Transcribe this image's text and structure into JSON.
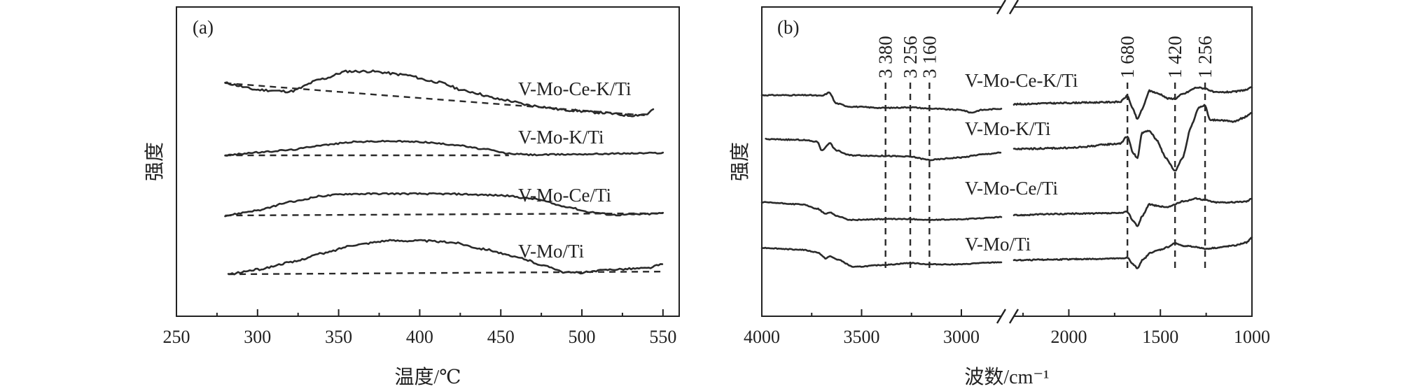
{
  "chart_data": [
    {
      "panel_tag": "(a)",
      "type": "line",
      "xlabel": "温度/℃",
      "ylabel": "强度",
      "xlim": [
        250,
        560
      ],
      "xticks": [
        250,
        300,
        350,
        400,
        450,
        500,
        550
      ],
      "x_range_of_curves": [
        280,
        550
      ],
      "series": [
        {
          "name": "V-Mo-Ce-K/Ti",
          "x_end": 545,
          "curve": [
            [
              280,
              0.72
            ],
            [
              300,
              0.56
            ],
            [
              320,
              0.52
            ],
            [
              340,
              0.82
            ],
            [
              355,
              1.0
            ],
            [
              370,
              1.0
            ],
            [
              390,
              0.92
            ],
            [
              410,
              0.75
            ],
            [
              430,
              0.52
            ],
            [
              450,
              0.33
            ],
            [
              470,
              0.18
            ],
            [
              490,
              0.08
            ],
            [
              510,
              0.02
            ],
            [
              530,
              -0.05
            ],
            [
              540,
              -0.02
            ],
            [
              545,
              0.12
            ]
          ],
          "baseline": [
            [
              280,
              0.72
            ],
            [
              540,
              -0.05
            ]
          ]
        },
        {
          "name": "V-Mo-K/Ti",
          "x_end": 550,
          "curve": [
            [
              280,
              0.0
            ],
            [
              300,
              0.12
            ],
            [
              320,
              0.22
            ],
            [
              340,
              0.42
            ],
            [
              360,
              0.55
            ],
            [
              380,
              0.58
            ],
            [
              400,
              0.55
            ],
            [
              420,
              0.44
            ],
            [
              440,
              0.25
            ],
            [
              455,
              0.07
            ],
            [
              470,
              0.02
            ],
            [
              500,
              0.05
            ],
            [
              530,
              0.08
            ],
            [
              550,
              0.1
            ]
          ],
          "baseline": [
            [
              280,
              0.0
            ],
            [
              455,
              0.0
            ]
          ]
        },
        {
          "name": "V-Mo-Ce/Ti",
          "x_end": 550,
          "curve": [
            [
              280,
              0.0
            ],
            [
              300,
              0.18
            ],
            [
              320,
              0.48
            ],
            [
              340,
              0.7
            ],
            [
              355,
              0.77
            ],
            [
              380,
              0.78
            ],
            [
              420,
              0.77
            ],
            [
              450,
              0.72
            ],
            [
              470,
              0.6
            ],
            [
              490,
              0.32
            ],
            [
              505,
              0.12
            ],
            [
              520,
              0.02
            ],
            [
              540,
              0.05
            ],
            [
              550,
              0.08
            ]
          ],
          "baseline": [
            [
              280,
              0.0
            ],
            [
              550,
              0.08
            ]
          ]
        },
        {
          "name": "V-Mo/Ti",
          "x_end": 550,
          "curve": [
            [
              282,
              0.0
            ],
            [
              300,
              0.14
            ],
            [
              320,
              0.35
            ],
            [
              340,
              0.62
            ],
            [
              360,
              0.88
            ],
            [
              380,
              1.0
            ],
            [
              400,
              1.0
            ],
            [
              420,
              0.95
            ],
            [
              440,
              0.75
            ],
            [
              460,
              0.5
            ],
            [
              480,
              0.22
            ],
            [
              490,
              0.05
            ],
            [
              500,
              0.05
            ],
            [
              520,
              0.15
            ],
            [
              540,
              0.18
            ],
            [
              550,
              0.3
            ]
          ],
          "baseline": [
            [
              282,
              0.0
            ],
            [
              550,
              0.08
            ]
          ]
        }
      ]
    },
    {
      "panel_tag": "(b)",
      "type": "line",
      "xlabel": "波数/cm⁻¹",
      "ylabel": "强度",
      "x_reversed": true,
      "axis_break": [
        2800,
        2300
      ],
      "xticks": [
        4000,
        3500,
        3000,
        2000,
        1500,
        1000
      ],
      "peaks": [
        {
          "x": 3380,
          "label": "3 380"
        },
        {
          "x": 3256,
          "label": "3 256"
        },
        {
          "x": 3160,
          "label": "3 160"
        },
        {
          "x": 1680,
          "label": "1 680"
        },
        {
          "x": 1420,
          "label": "1 420"
        },
        {
          "x": 1256,
          "label": "1 256"
        }
      ],
      "series": [
        {
          "name": "V-Mo-Ce-K/Ti",
          "curve_left": [
            [
              4000,
              0.02
            ],
            [
              3760,
              0.02
            ],
            [
              3700,
              0.0
            ],
            [
              3660,
              0.1
            ],
            [
              3630,
              -0.22
            ],
            [
              3560,
              -0.32
            ],
            [
              3380,
              -0.36
            ],
            [
              3256,
              -0.34
            ],
            [
              3160,
              -0.38
            ],
            [
              3000,
              -0.42
            ],
            [
              2950,
              -0.5
            ],
            [
              2900,
              -0.42
            ],
            [
              2800,
              -0.38
            ]
          ],
          "curve_right": [
            [
              2300,
              -0.25
            ],
            [
              2100,
              -0.22
            ],
            [
              1900,
              -0.2
            ],
            [
              1720,
              -0.18
            ],
            [
              1680,
              0.0
            ],
            [
              1650,
              -0.4
            ],
            [
              1625,
              -0.7
            ],
            [
              1600,
              -0.4
            ],
            [
              1560,
              0.15
            ],
            [
              1500,
              0.05
            ],
            [
              1460,
              -0.08
            ],
            [
              1420,
              -0.08
            ],
            [
              1380,
              0.05
            ],
            [
              1300,
              0.25
            ],
            [
              1256,
              0.22
            ],
            [
              1200,
              0.1
            ],
            [
              1100,
              0.12
            ],
            [
              1030,
              0.18
            ],
            [
              1000,
              0.25
            ]
          ]
        },
        {
          "name": "V-Mo-K/Ti",
          "curve_left": [
            [
              3980,
              0.02
            ],
            [
              3800,
              0.0
            ],
            [
              3720,
              -0.05
            ],
            [
              3700,
              -0.3
            ],
            [
              3660,
              -0.08
            ],
            [
              3630,
              -0.28
            ],
            [
              3560,
              -0.42
            ],
            [
              3380,
              -0.44
            ],
            [
              3256,
              -0.46
            ],
            [
              3160,
              -0.55
            ],
            [
              3000,
              -0.48
            ],
            [
              2900,
              -0.4
            ],
            [
              2800,
              -0.35
            ]
          ],
          "curve_right": [
            [
              2300,
              -0.25
            ],
            [
              2000,
              -0.22
            ],
            [
              1720,
              -0.1
            ],
            [
              1680,
              0.1
            ],
            [
              1650,
              -0.35
            ],
            [
              1625,
              -0.5
            ],
            [
              1600,
              0.2
            ],
            [
              1560,
              0.25
            ],
            [
              1520,
              0.0
            ],
            [
              1470,
              -0.5
            ],
            [
              1420,
              -0.85
            ],
            [
              1380,
              -0.5
            ],
            [
              1330,
              0.4
            ],
            [
              1290,
              0.9
            ],
            [
              1256,
              0.95
            ],
            [
              1230,
              0.55
            ],
            [
              1180,
              0.55
            ],
            [
              1100,
              0.5
            ],
            [
              1050,
              0.6
            ],
            [
              1000,
              0.75
            ]
          ]
        },
        {
          "name": "V-Mo-Ce/Ti",
          "curve_left": [
            [
              4000,
              0.02
            ],
            [
              3800,
              -0.05
            ],
            [
              3720,
              -0.2
            ],
            [
              3680,
              -0.38
            ],
            [
              3660,
              -0.32
            ],
            [
              3620,
              -0.45
            ],
            [
              3560,
              -0.58
            ],
            [
              3380,
              -0.55
            ],
            [
              3256,
              -0.55
            ],
            [
              3160,
              -0.58
            ],
            [
              3000,
              -0.56
            ],
            [
              2900,
              -0.52
            ],
            [
              2800,
              -0.48
            ]
          ],
          "curve_right": [
            [
              2300,
              -0.42
            ],
            [
              2100,
              -0.38
            ],
            [
              1900,
              -0.36
            ],
            [
              1720,
              -0.35
            ],
            [
              1680,
              -0.3
            ],
            [
              1650,
              -0.6
            ],
            [
              1625,
              -0.8
            ],
            [
              1600,
              -0.45
            ],
            [
              1560,
              -0.05
            ],
            [
              1500,
              -0.12
            ],
            [
              1460,
              -0.15
            ],
            [
              1420,
              -0.05
            ],
            [
              1380,
              0.05
            ],
            [
              1300,
              0.15
            ],
            [
              1256,
              0.1
            ],
            [
              1200,
              0.02
            ],
            [
              1100,
              0.02
            ],
            [
              1030,
              0.05
            ],
            [
              1000,
              0.15
            ]
          ]
        },
        {
          "name": "V-Mo/Ti",
          "curve_left": [
            [
              4000,
              0.02
            ],
            [
              3800,
              -0.05
            ],
            [
              3720,
              -0.15
            ],
            [
              3680,
              -0.38
            ],
            [
              3660,
              -0.3
            ],
            [
              3620,
              -0.42
            ],
            [
              3540,
              -0.7
            ],
            [
              3380,
              -0.62
            ],
            [
              3256,
              -0.55
            ],
            [
              3160,
              -0.6
            ],
            [
              3000,
              -0.6
            ],
            [
              2900,
              -0.55
            ],
            [
              2800,
              -0.52
            ]
          ],
          "curve_right": [
            [
              2300,
              -0.45
            ],
            [
              2100,
              -0.42
            ],
            [
              1900,
              -0.4
            ],
            [
              1720,
              -0.38
            ],
            [
              1680,
              -0.35
            ],
            [
              1650,
              -0.6
            ],
            [
              1625,
              -0.75
            ],
            [
              1600,
              -0.45
            ],
            [
              1550,
              -0.15
            ],
            [
              1500,
              -0.05
            ],
            [
              1460,
              0.05
            ],
            [
              1420,
              0.2
            ],
            [
              1380,
              0.1
            ],
            [
              1300,
              0.05
            ],
            [
              1256,
              -0.02
            ],
            [
              1200,
              0.02
            ],
            [
              1100,
              0.1
            ],
            [
              1030,
              0.22
            ],
            [
              1000,
              0.4
            ]
          ]
        }
      ]
    }
  ]
}
